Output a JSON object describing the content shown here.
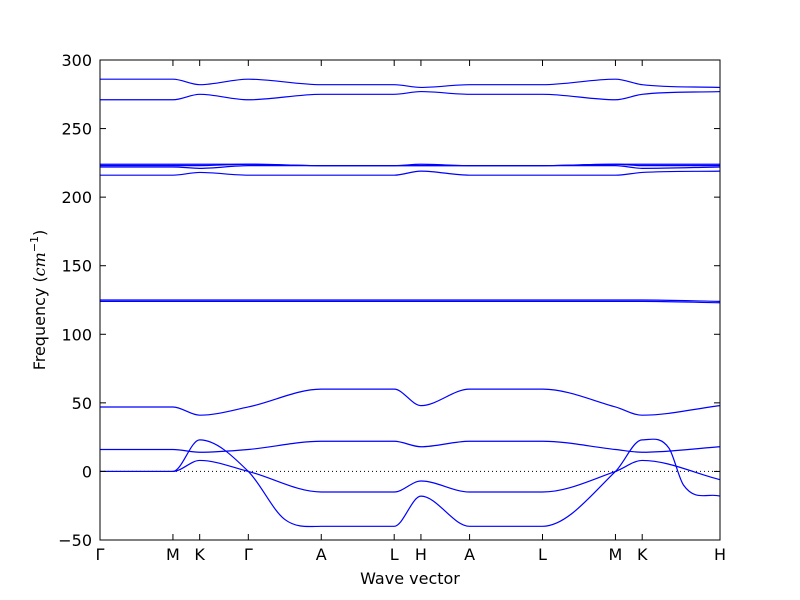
{
  "chart_data": {
    "type": "line",
    "xlabel": "Wave vector",
    "ylabel": "Frequency (",
    "ylabel_unit": "cm",
    "ylabel_exp": "−1",
    "ylabel_close": ")",
    "ylim": [
      -50,
      300
    ],
    "yticks": [
      -50,
      0,
      50,
      100,
      150,
      200,
      250,
      300
    ],
    "xlim": [
      0,
      12.75
    ],
    "xticks": [
      {
        "label": "Γ",
        "x": 0
      },
      {
        "label": "M",
        "x": 1.5
      },
      {
        "label": "K",
        "x": 2.05
      },
      {
        "label": "Γ",
        "x": 3.05
      },
      {
        "label": "A",
        "x": 4.55
      },
      {
        "label": "L",
        "x": 6.05
      },
      {
        "label": "H",
        "x": 6.6
      },
      {
        "label": "A",
        "x": 7.6
      },
      {
        "label": "L",
        "x": 9.1
      },
      {
        "label": "M",
        "x": 10.6
      },
      {
        "label": "K",
        "x": 11.15
      },
      {
        "label": "H",
        "x": 12.75
      }
    ],
    "zero_line": true,
    "color": "#0000ff",
    "series": [
      {
        "x": [
          0,
          1.5,
          2.05,
          3.05,
          4.55,
          6.05,
          6.6,
          7.6,
          9.1,
          10.6,
          11.15,
          12.75
        ],
        "y": [
          0,
          0,
          8,
          0,
          -15,
          -15,
          -7,
          -15,
          -15,
          0,
          8,
          -6
        ]
      },
      {
        "x": [
          0,
          1.5,
          2.05,
          3.05,
          3.8,
          4.55,
          6.05,
          6.6,
          7.6,
          9.1,
          10.6,
          11.15,
          11.7,
          12.0,
          12.75
        ],
        "y": [
          0,
          0,
          23,
          0,
          -35,
          -40,
          -40,
          -18,
          -40,
          -40,
          0,
          23,
          17,
          -10,
          -18
        ]
      },
      {
        "x": [
          0,
          1.5,
          2.05,
          3.05,
          4.55,
          6.05,
          6.6,
          7.6,
          9.1,
          10.6,
          11.15,
          12.75
        ],
        "y": [
          16,
          16,
          14,
          16,
          22,
          22,
          18,
          22,
          22,
          16,
          14,
          18
        ]
      },
      {
        "x": [
          0,
          1.5,
          2.05,
          3.05,
          4.55,
          6.05,
          6.6,
          7.6,
          9.1,
          10.6,
          11.15,
          12.75
        ],
        "y": [
          47,
          47,
          41,
          47,
          60,
          60,
          48,
          60,
          60,
          47,
          41,
          48
        ]
      },
      {
        "x": [
          0,
          1.5,
          2.05,
          3.05,
          4.55,
          6.05,
          6.6,
          7.6,
          9.1,
          10.6,
          11.15,
          12.75
        ],
        "y": [
          124,
          124,
          124,
          124,
          124,
          124,
          124,
          124,
          124,
          124,
          124,
          123
        ]
      },
      {
        "x": [
          0,
          1.5,
          2.05,
          3.05,
          4.55,
          6.05,
          6.6,
          7.6,
          9.1,
          10.6,
          11.15,
          12.75
        ],
        "y": [
          125,
          125,
          125,
          125,
          125,
          125,
          125,
          125,
          125,
          125,
          125,
          124
        ]
      },
      {
        "x": [
          0,
          1.5,
          2.05,
          3.05,
          4.55,
          6.05,
          6.6,
          7.6,
          9.1,
          10.6,
          11.15,
          12.75
        ],
        "y": [
          216,
          216,
          218,
          216,
          216,
          216,
          219,
          216,
          216,
          216,
          218,
          219
        ]
      },
      {
        "x": [
          0,
          1.5,
          2.05,
          3.05,
          4.55,
          6.05,
          6.6,
          7.6,
          9.1,
          10.6,
          11.15,
          12.75
        ],
        "y": [
          222,
          222,
          221,
          223,
          223,
          223,
          223,
          223,
          223,
          223,
          221,
          222
        ]
      },
      {
        "x": [
          0,
          1.5,
          2.05,
          3.05,
          4.55,
          6.05,
          6.6,
          7.6,
          9.1,
          10.6,
          11.15,
          12.75
        ],
        "y": [
          223,
          223,
          223,
          224,
          223,
          223,
          224,
          223,
          223,
          224,
          223,
          223
        ]
      },
      {
        "x": [
          0,
          1.5,
          2.05,
          3.05,
          4.55,
          6.05,
          6.6,
          7.6,
          9.1,
          10.6,
          11.15,
          12.75
        ],
        "y": [
          224,
          224,
          224,
          224,
          223,
          223,
          223,
          223,
          223,
          224,
          224,
          224
        ]
      },
      {
        "x": [
          0,
          1.5,
          2.05,
          3.05,
          4.55,
          6.05,
          6.6,
          7.6,
          9.1,
          10.6,
          11.15,
          12.75
        ],
        "y": [
          271,
          271,
          275,
          271,
          275,
          275,
          277,
          275,
          275,
          271,
          275,
          277
        ]
      },
      {
        "x": [
          0,
          1.5,
          2.05,
          3.05,
          4.55,
          6.05,
          6.6,
          7.6,
          9.1,
          10.6,
          11.15,
          12.75
        ],
        "y": [
          286,
          286,
          282,
          286,
          282,
          282,
          280,
          282,
          282,
          286,
          282,
          280
        ]
      }
    ]
  }
}
